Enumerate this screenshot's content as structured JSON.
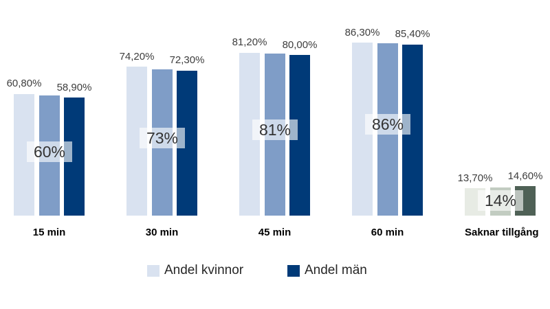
{
  "page": {
    "background": "#ffffff"
  },
  "chart_data": {
    "type": "bar",
    "title": "",
    "categories": [
      "15 min",
      "30 min",
      "45 min",
      "60 min",
      "Saknar tillgång"
    ],
    "series": [
      {
        "name": "Andel kvinnor",
        "in_legend": true,
        "values": [
          60.8,
          74.2,
          81.2,
          86.3,
          13.7
        ],
        "data_labels": [
          "60,80%",
          "74,20%",
          "81,20%",
          "86,30%",
          "13,70%"
        ]
      },
      {
        "name": "",
        "in_legend": false,
        "values": [
          60,
          73,
          81,
          86,
          14
        ],
        "data_labels": [
          "60%",
          "73%",
          "81%",
          "86%",
          "14%"
        ]
      },
      {
        "name": "Andel män",
        "in_legend": true,
        "values": [
          58.9,
          72.3,
          80.0,
          85.4,
          14.6
        ],
        "data_labels": [
          "58,90%",
          "72,30%",
          "80,00%",
          "85,40%",
          "14,60%"
        ]
      }
    ],
    "colors": {
      "blue_groups": [
        "#d9e2f0",
        "#7f9dc7",
        "#003a78"
      ],
      "grey_group": [
        "#e7ebe4",
        "#c2ccc1",
        "#4f6156"
      ],
      "grey_group_index": 4,
      "value_label_text": "#3d3d3d",
      "total_label_text": "#333333",
      "category_label_text": "#000000"
    },
    "legend": [
      {
        "label": "Andel kvinnor",
        "color": "#d9e2f0"
      },
      {
        "label": "Andel män",
        "color": "#003a78"
      }
    ],
    "axes": {
      "x_axis_visible": false,
      "y_axis_visible": false,
      "grid": false,
      "value_unit": "%",
      "value_range": [
        0,
        100
      ]
    },
    "legend_position": "bottom"
  }
}
